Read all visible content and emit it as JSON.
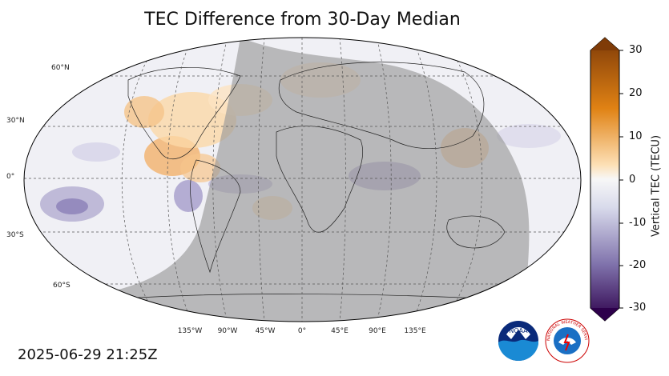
{
  "title": "TEC Difference from 30-Day Median",
  "timestamp": "2025-06-29 21:25Z",
  "lat_labels": [
    "60°N",
    "30°N",
    "0°",
    "30°S",
    "60°S"
  ],
  "lon_labels": [
    "135°W",
    "90°W",
    "45°W",
    "0°",
    "45°E",
    "90°E",
    "135°E"
  ],
  "colorbar": {
    "label": "Vertical TEC (TECU)",
    "ticks": [
      "30",
      "20",
      "10",
      "0",
      "-10",
      "-20",
      "-30"
    ],
    "range": [
      -30,
      30
    ],
    "colors": {
      "max": "#7f3b08",
      "mid_pos": "#e08214",
      "zero": "#f7f7f7",
      "mid_neg": "#8073ac",
      "min": "#2d004b"
    }
  },
  "overlay": {
    "night_shade": "#999999"
  },
  "logos": {
    "noaa": "NOAA",
    "nws": "NATIONAL WEATHER SERVICE"
  }
}
